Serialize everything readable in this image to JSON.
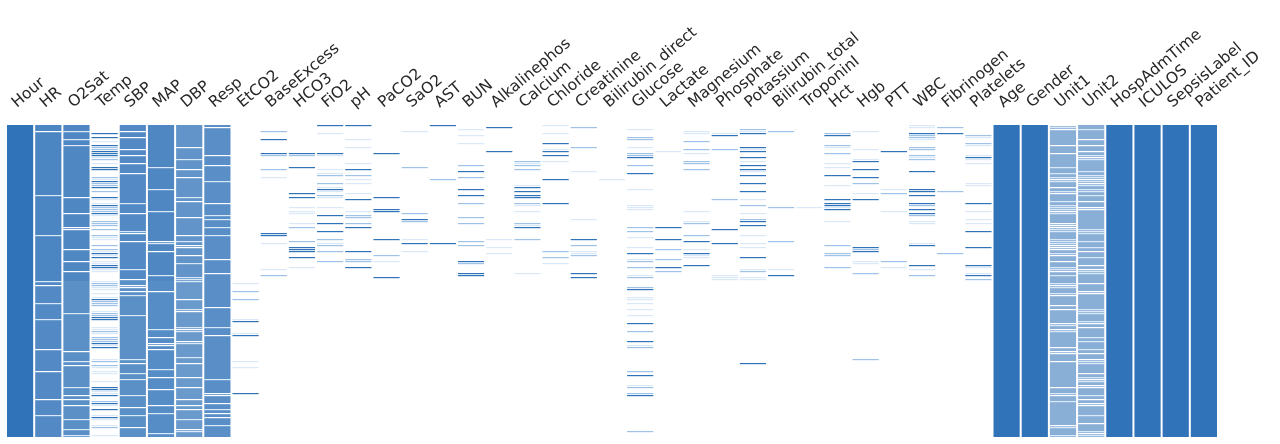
{
  "chart_data": {
    "type": "heatmap",
    "title": "",
    "xlabel": "",
    "ylabel": "",
    "colors": {
      "present": "#3173b9",
      "mid": "#9ec3e6",
      "light": "#d9e9f7",
      "missing": "#ffffff"
    },
    "categories": [
      "Hour",
      "HR",
      "O2Sat",
      "Temp",
      "SBP",
      "MAP",
      "DBP",
      "Resp",
      "EtCO2",
      "BaseExcess",
      "HCO3",
      "FiO2",
      "pH",
      "PaCO2",
      "SaO2",
      "AST",
      "BUN",
      "Alkalinephos",
      "Calcium",
      "Chloride",
      "Creatinine",
      "Bilirubin_direct",
      "Glucose",
      "Lactate",
      "Magnesium",
      "Phosphate",
      "Potassium",
      "Bilirubin_total",
      "TroponinI",
      "Hct",
      "Hgb",
      "PTT",
      "WBC",
      "Fibrinogen",
      "Platelets",
      "Age",
      "Gender",
      "Unit1",
      "Unit2",
      "HospAdmTime",
      "ICULOS",
      "SepsisLabel",
      "Patient_ID"
    ],
    "presence": [
      1.0,
      0.9,
      0.87,
      0.34,
      0.86,
      0.88,
      0.78,
      0.85,
      0.04,
      0.06,
      0.05,
      0.08,
      0.07,
      0.06,
      0.03,
      0.02,
      0.07,
      0.02,
      0.06,
      0.05,
      0.06,
      0.01,
      0.17,
      0.03,
      0.06,
      0.04,
      0.09,
      0.02,
      0.01,
      0.09,
      0.08,
      0.03,
      0.07,
      0.01,
      0.06,
      1.0,
      1.0,
      0.6,
      0.6,
      1.0,
      1.0,
      1.0,
      1.0
    ],
    "row_groups": [
      {
        "name": "top",
        "height_fraction": 0.5
      },
      {
        "name": "bottom",
        "height_fraction": 0.5
      }
    ],
    "top_sparse_presence": [
      1.0,
      0.92,
      0.9,
      0.36,
      0.88,
      0.9,
      0.8,
      0.85,
      0.0,
      0.12,
      0.1,
      0.16,
      0.14,
      0.12,
      0.06,
      0.04,
      0.14,
      0.04,
      0.12,
      0.1,
      0.12,
      0.02,
      0.2,
      0.06,
      0.12,
      0.08,
      0.16,
      0.04,
      0.02,
      0.16,
      0.14,
      0.06,
      0.14,
      0.02,
      0.12,
      1.0,
      1.0,
      0.6,
      0.6,
      1.0,
      1.0,
      1.0,
      1.0
    ],
    "bottom_sparse_presence": [
      1.0,
      0.88,
      0.84,
      0.32,
      0.84,
      0.86,
      0.76,
      0.85,
      0.08,
      0.0,
      0.0,
      0.0,
      0.0,
      0.0,
      0.0,
      0.0,
      0.0,
      0.0,
      0.0,
      0.0,
      0.0,
      0.0,
      0.14,
      0.0,
      0.0,
      0.0,
      0.02,
      0.0,
      0.0,
      0.02,
      0.02,
      0.0,
      0.0,
      0.0,
      0.0,
      1.0,
      1.0,
      0.6,
      0.6,
      1.0,
      1.0,
      1.0,
      1.0
    ],
    "grid": false,
    "legend": "none"
  }
}
